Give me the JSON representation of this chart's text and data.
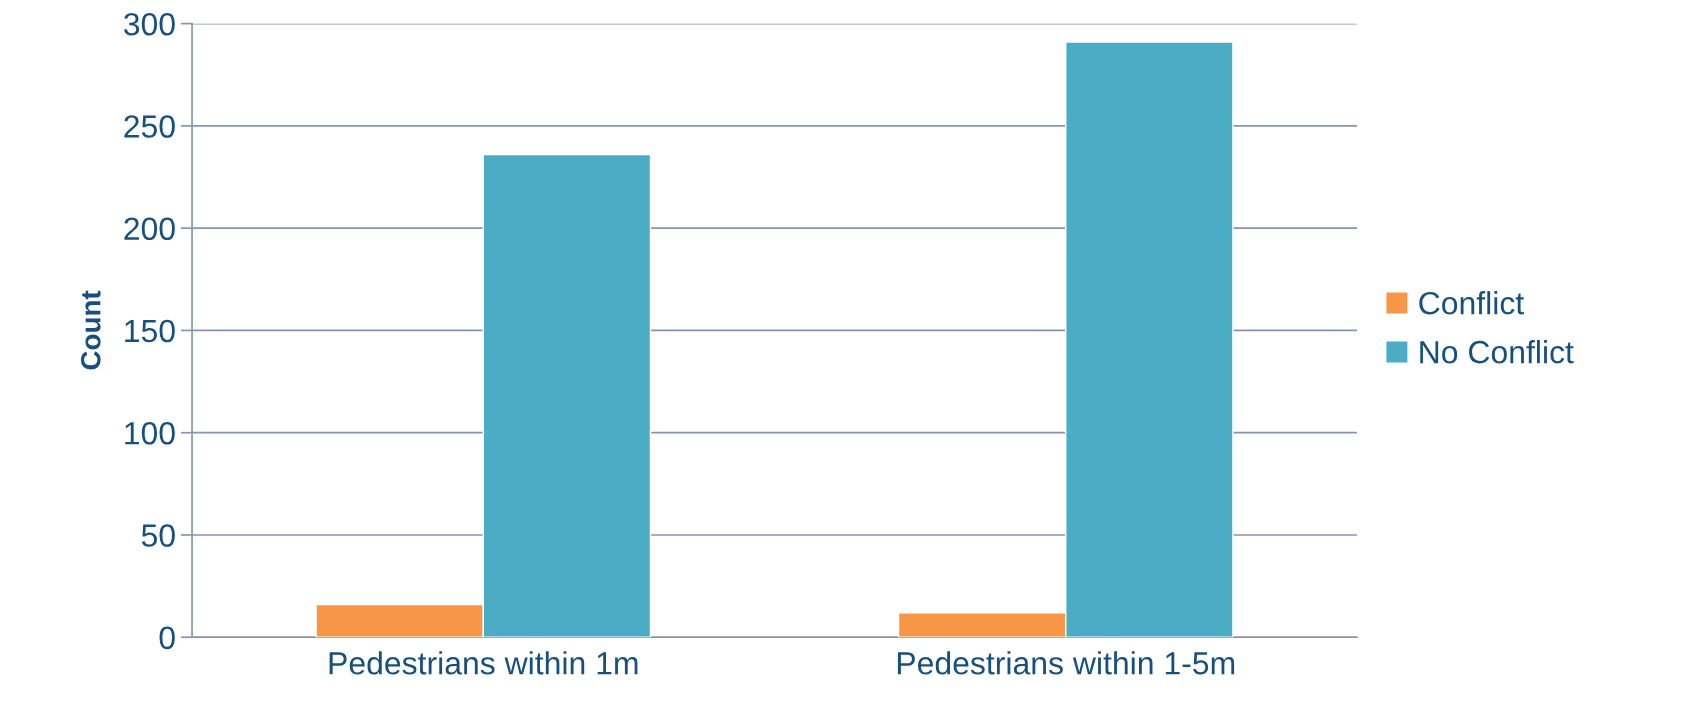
{
  "chart_data": {
    "type": "bar",
    "ylabel": "Count",
    "categories": [
      "Pedestrians within 1m",
      "Pedestrians within 1-5m"
    ],
    "series": [
      {
        "name": "Conflict",
        "color": "#f79646",
        "values": [
          16,
          12
        ]
      },
      {
        "name": "No Conflict",
        "color": "#4bacc6",
        "values": [
          236,
          291
        ]
      }
    ],
    "ylim": [
      0,
      300
    ],
    "yticks": [
      0,
      50,
      100,
      150,
      200,
      250,
      300
    ],
    "grid": "y",
    "legend": "right"
  }
}
